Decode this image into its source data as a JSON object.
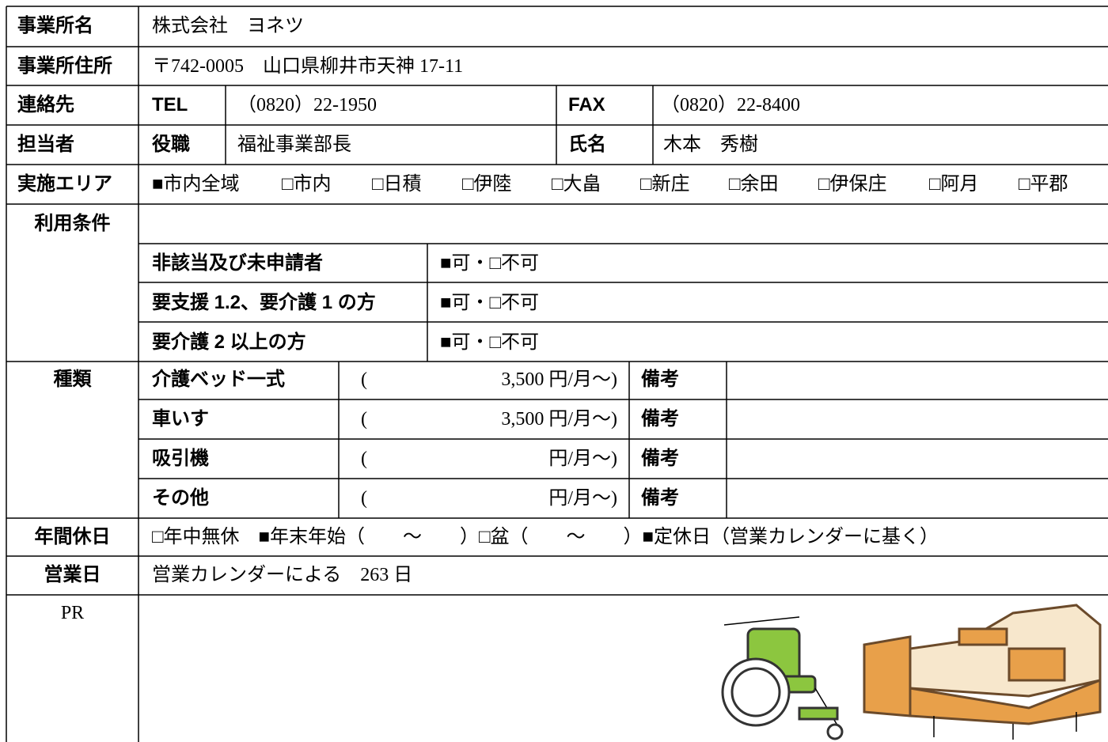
{
  "office": {
    "label": "事業所名",
    "value": "株式会社　ヨネツ"
  },
  "address": {
    "label": "事業所住所",
    "value": "〒742-0005　山口県柳井市天神 17-11"
  },
  "contact": {
    "label": "連絡先",
    "tel_label": "TEL",
    "tel": "（0820）22-1950",
    "fax_label": "FAX",
    "fax": "（0820）22-8400"
  },
  "person": {
    "label": "担当者",
    "title_label": "役職",
    "title": "福祉事業部長",
    "name_label": "氏名",
    "name": "木本　秀樹"
  },
  "area": {
    "label": "実施エリア",
    "options": [
      "■市内全域",
      "□市内",
      "□日積",
      "□伊陸",
      "□大畠",
      "□新庄",
      "□余田",
      "□伊保庄",
      "□阿月",
      "□平郡"
    ]
  },
  "conditions": {
    "label": "利用条件",
    "items": [
      {
        "name": "非該当及び未申請者",
        "value": "■可・□不可"
      },
      {
        "name": "要支援 1.2、要介護 1 の方",
        "value": "■可・□不可"
      },
      {
        "name": "要介護 2 以上の方",
        "value": "■可・□不可"
      }
    ]
  },
  "types": {
    "label": "種類",
    "items": [
      {
        "name": "介護ベッド一式",
        "open": "(",
        "price": "3,500 円/月～)",
        "note": "備考"
      },
      {
        "name": "車いす",
        "open": "(",
        "price": "3,500 円/月～)",
        "note": "備考"
      },
      {
        "name": "吸引機",
        "open": "(",
        "price": "円/月～)",
        "note": "備考"
      },
      {
        "name": "その他",
        "open": "(",
        "price": "円/月～)",
        "note": "備考"
      }
    ]
  },
  "holidays": {
    "label": "年間休日",
    "value": "□年中無休　■年末年始（　　～　　）□盆（　　～　　）■定休日（営業カレンダーに基く）"
  },
  "business_days": {
    "label": "営業日",
    "value": "営業カレンダーによる　263 日"
  },
  "pr": {
    "label": "PR"
  }
}
